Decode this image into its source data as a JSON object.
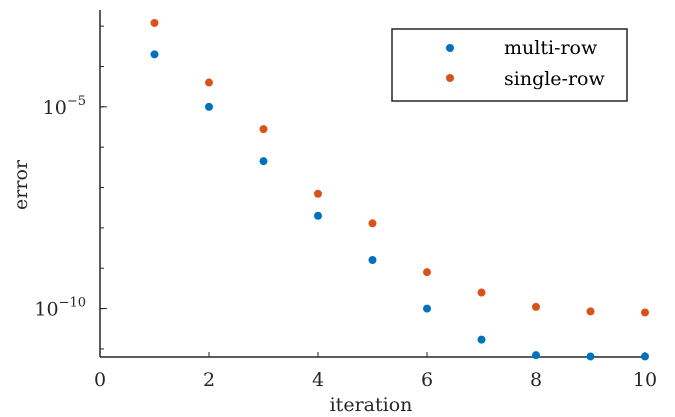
{
  "chart_data": {
    "type": "scatter",
    "xlabel": "iteration",
    "ylabel": "error",
    "xlim": [
      0,
      10
    ],
    "ylim_exponent": [
      -11.2,
      -2.6
    ],
    "yscale": "log",
    "x_ticks": [
      "0",
      "2",
      "4",
      "6",
      "8",
      "10"
    ],
    "y_ticks": [
      {
        "base": "10",
        "exp": "−5",
        "value_exp": -5
      },
      {
        "base": "10",
        "exp": "−10",
        "value_exp": -10
      }
    ],
    "legend_position": "top-right",
    "series": [
      {
        "name": "multi-row",
        "color": "#0072BD",
        "x": [
          1,
          2,
          3,
          4,
          5,
          6,
          7,
          8,
          9,
          10
        ],
        "y": [
          "2.0e-4",
          "1.0e-5",
          "4.5e-7",
          "2.0e-8",
          "1.6e-9",
          "1.0e-10",
          "1.7e-11",
          "7.0e-12",
          "6.5e-12",
          "6.5e-12"
        ]
      },
      {
        "name": "single-row",
        "color": "#D95319",
        "x": [
          1,
          2,
          3,
          4,
          5,
          6,
          7,
          8,
          9,
          10
        ],
        "y": [
          "1.2e-3",
          "4.0e-5",
          "2.8e-6",
          "7.0e-8",
          "1.3e-8",
          "8.0e-10",
          "2.5e-10",
          "1.1e-10",
          "8.5e-11",
          "8.0e-11"
        ]
      }
    ]
  }
}
